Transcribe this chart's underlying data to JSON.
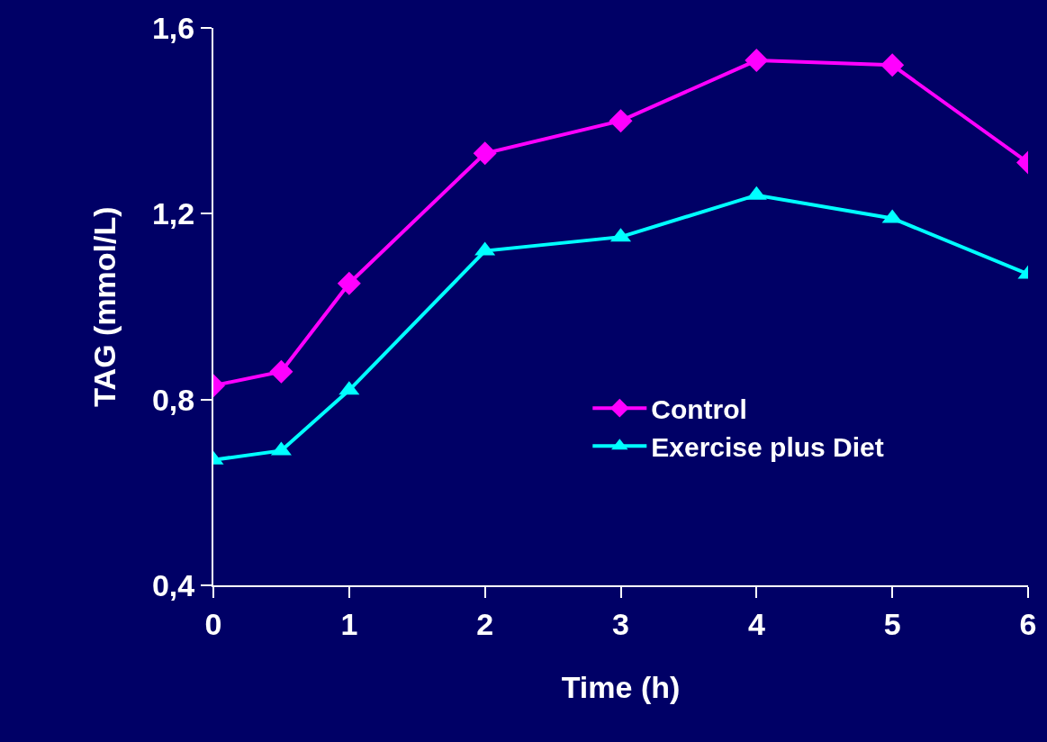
{
  "chart_data": {
    "type": "line",
    "xlabel": "Time (h)",
    "ylabel": "TAG (mmol/L)",
    "x": [
      0,
      0.5,
      1,
      2,
      3,
      4,
      5,
      6
    ],
    "series": [
      {
        "name": "Control",
        "color": "#ff00ff",
        "marker": "diamond",
        "values": [
          0.83,
          0.86,
          1.05,
          1.33,
          1.4,
          1.53,
          1.52,
          1.31
        ]
      },
      {
        "name": "Exercise plus Diet",
        "color": "#00ffff",
        "marker": "triangle",
        "values": [
          0.67,
          0.69,
          0.82,
          1.12,
          1.15,
          1.24,
          1.19,
          1.07
        ]
      }
    ],
    "xlim": [
      0,
      6
    ],
    "xticks": [
      0,
      1,
      2,
      3,
      4,
      5,
      6
    ],
    "ylim": [
      0.4,
      1.6
    ],
    "yticks": [
      {
        "value": 0.4,
        "label": "0,4"
      },
      {
        "value": 0.8,
        "label": "0,8"
      },
      {
        "value": 1.2,
        "label": "1,2"
      },
      {
        "value": 1.6,
        "label": "1,6"
      }
    ],
    "grid": false,
    "legend": "right",
    "line_style": "solid"
  }
}
